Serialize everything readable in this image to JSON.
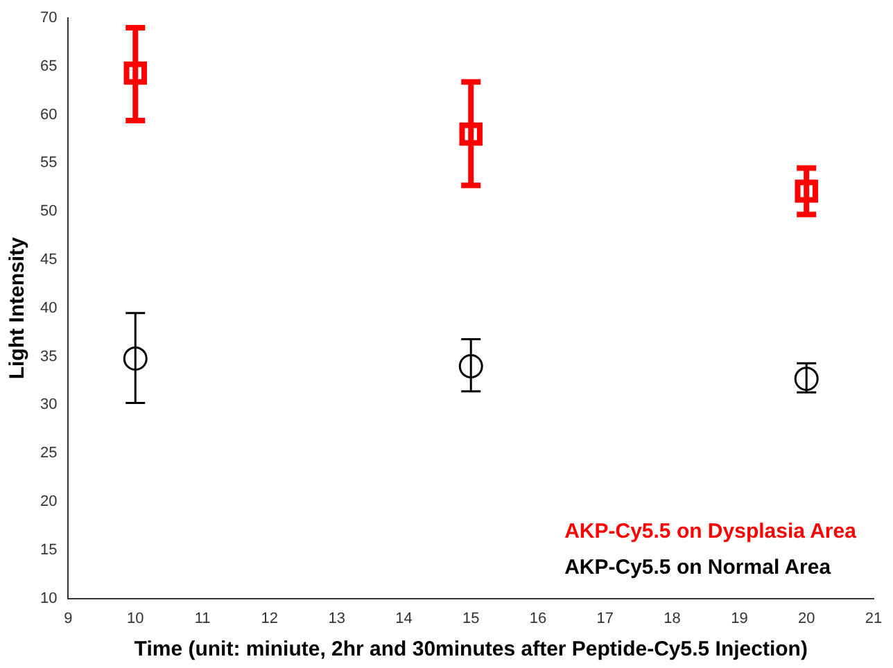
{
  "chart_data": {
    "type": "scatter",
    "xlabel": "Time (unit: miniute, 2hr and 30minutes after Peptide-Cy5.5 Injection)",
    "ylabel": "Light Intensity",
    "x": [
      10,
      15,
      20
    ],
    "series": [
      {
        "name": "AKP-Cy5.5 on Dysplasia Area",
        "color": "#ff0000",
        "marker": "square",
        "values": [
          64.3,
          58.0,
          52.1
        ],
        "errors": [
          [
            59.4,
            69.0
          ],
          [
            52.7,
            63.4
          ],
          [
            49.7,
            54.5
          ]
        ]
      },
      {
        "name": "AKP-Cy5.5 on Normal Area",
        "color": "#000000",
        "marker": "circle",
        "values": [
          34.8,
          34.0,
          32.7
        ],
        "errors": [
          [
            30.2,
            39.5
          ],
          [
            31.4,
            36.8
          ],
          [
            31.3,
            34.3
          ]
        ]
      }
    ],
    "xlim": [
      9,
      21
    ],
    "xticks": [
      9,
      10,
      11,
      12,
      13,
      14,
      15,
      16,
      17,
      18,
      19,
      20,
      21
    ],
    "ylim": [
      10,
      70
    ],
    "yticks": [
      10,
      15,
      20,
      25,
      30,
      35,
      40,
      45,
      50,
      55,
      60,
      65,
      70
    ],
    "grid": false,
    "legend": "bottom right"
  }
}
